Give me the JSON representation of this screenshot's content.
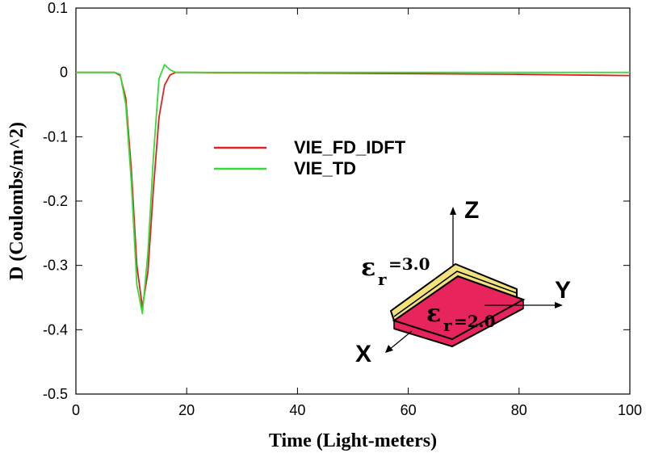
{
  "chart_data": {
    "type": "line",
    "title": "",
    "xlabel": "Time (Light-meters)",
    "ylabel": "D (Coulombs/m^2)",
    "xlim": [
      0,
      100
    ],
    "ylim": [
      -0.5,
      0.1
    ],
    "xticks": [
      0,
      20,
      40,
      60,
      80,
      100
    ],
    "yticks": [
      0.1,
      0,
      -0.1,
      -0.2,
      -0.3,
      -0.4,
      -0.5
    ],
    "xtick_labels": [
      "0",
      "20",
      "40",
      "60",
      "80",
      "100"
    ],
    "ytick_labels": [
      "0.1",
      "0",
      "-0.1",
      "-0.2",
      "-0.3",
      "-0.4",
      "-0.5"
    ],
    "grid": false,
    "legend_position": "center-left",
    "series": [
      {
        "name": "VIE_FD_IDFT",
        "color": "#dd2222",
        "x": [
          0,
          7,
          8,
          9,
          10,
          11,
          12,
          13,
          14,
          15,
          16,
          17,
          18,
          20,
          25,
          40,
          60,
          80,
          100
        ],
        "y": [
          0,
          0,
          -0.005,
          -0.04,
          -0.15,
          -0.3,
          -0.365,
          -0.31,
          -0.18,
          -0.07,
          -0.02,
          -0.004,
          0,
          0,
          -0.0005,
          -0.001,
          -0.002,
          -0.003,
          -0.005
        ]
      },
      {
        "name": "VIE_TD",
        "color": "#33dd33",
        "x": [
          0,
          7,
          8,
          9,
          10,
          11,
          12,
          13,
          14,
          15,
          16,
          17,
          18,
          20,
          25,
          40,
          60,
          80,
          100
        ],
        "y": [
          0,
          0,
          -0.003,
          -0.05,
          -0.17,
          -0.33,
          -0.375,
          -0.28,
          -0.13,
          -0.01,
          0.012,
          0.004,
          0,
          0,
          0,
          0,
          0,
          0,
          0
        ]
      }
    ]
  },
  "inset": {
    "z_label": "Z",
    "y_label": "Y",
    "x_label": "X",
    "eps_symbol": "ε",
    "eps_sub": "r",
    "eps_top_value": "=3.0",
    "eps_bottom_value": "=2.0",
    "colors": {
      "top_slab": "#f2e27a",
      "bottom_slab": "#e8245c",
      "outline": "#000000"
    }
  }
}
